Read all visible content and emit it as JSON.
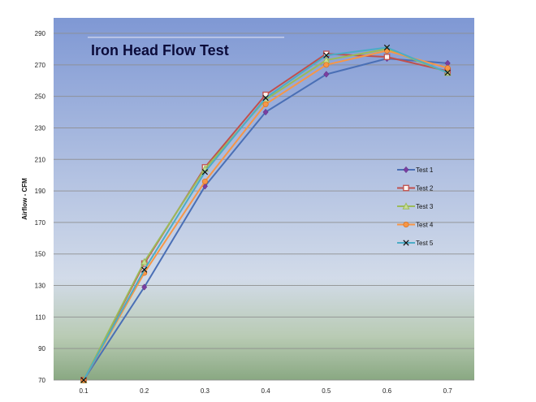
{
  "chart_data": {
    "type": "line",
    "title": "Iron Head Flow Test",
    "xlabel": "",
    "ylabel": "Airflow - CFM",
    "x": [
      "0.1",
      "0.2",
      "0.3",
      "0.4",
      "0.5",
      "0.6",
      "0.7"
    ],
    "ylim": [
      70,
      290
    ],
    "yticks": [
      "70",
      "90",
      "110",
      "130",
      "150",
      "170",
      "190",
      "210",
      "230",
      "250",
      "270",
      "290"
    ],
    "grid": true,
    "legend_position": "right",
    "series": [
      {
        "name": "Test 1",
        "color": "#4a6fb5",
        "marker": "diamond",
        "values": [
          70,
          129,
          193,
          240,
          264,
          274,
          271
        ]
      },
      {
        "name": "Test 2",
        "color": "#c0504d",
        "marker": "square",
        "values": [
          70,
          144,
          205,
          251,
          277,
          275,
          266
        ]
      },
      {
        "name": "Test 3",
        "color": "#9bbb59",
        "marker": "triangle",
        "values": [
          70,
          145,
          204,
          248,
          273,
          280,
          265
        ]
      },
      {
        "name": "Test 4",
        "color": "#f79646",
        "marker": "circle",
        "values": [
          70,
          138,
          196,
          245,
          270,
          279,
          268
        ]
      },
      {
        "name": "Test 5",
        "color": "#4bacc6",
        "marker": "x",
        "values": [
          70,
          140,
          202,
          249,
          276,
          281,
          265
        ]
      }
    ]
  }
}
